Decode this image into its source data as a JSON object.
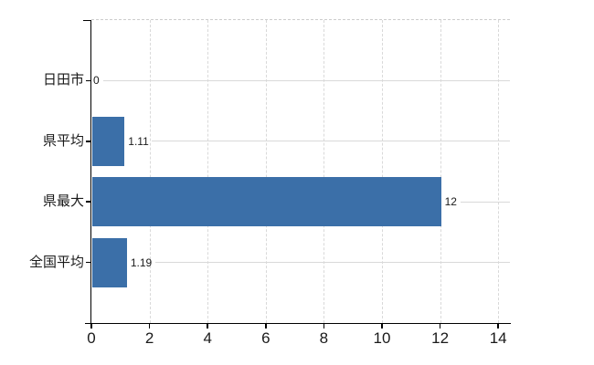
{
  "chart": {
    "background": "#FFFFFF",
    "bar_color": "#3B6FA8",
    "grid_color": "#D9D9D9",
    "frame_dash_color": "#CCCCCC",
    "axis_color": "#000000",
    "text_color": "#1A1A1A"
  },
  "chart_data": {
    "type": "bar",
    "orientation": "horizontal",
    "title": "",
    "xlabel": "",
    "ylabel": "",
    "categories": [
      "日田市",
      "県平均",
      "県最大",
      "全国平均"
    ],
    "values": [
      0,
      1.11,
      12,
      1.19
    ],
    "value_labels": [
      "0",
      "1.11",
      "12",
      "1.19"
    ],
    "x_ticks": [
      "0",
      "2",
      "4",
      "6",
      "8",
      "10",
      "12",
      "14"
    ],
    "x_tick_values": [
      0,
      2,
      4,
      6,
      8,
      10,
      12,
      14
    ],
    "xlim": [
      0,
      14.4
    ],
    "grid": "on",
    "legend": "none"
  }
}
